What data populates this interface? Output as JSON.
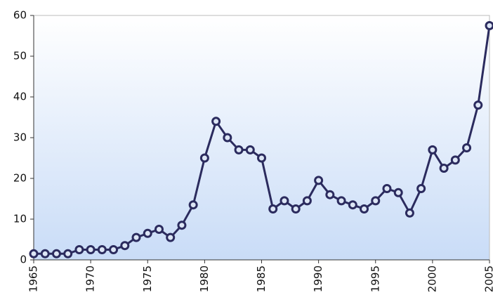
{
  "chart_data": {
    "type": "line",
    "x": [
      1965,
      1966,
      1967,
      1968,
      1969,
      1970,
      1971,
      1972,
      1973,
      1974,
      1975,
      1976,
      1977,
      1978,
      1979,
      1980,
      1981,
      1982,
      1983,
      1984,
      1985,
      1986,
      1987,
      1988,
      1989,
      1990,
      1991,
      1992,
      1993,
      1994,
      1995,
      1996,
      1997,
      1998,
      1999,
      2000,
      2001,
      2002,
      2003,
      2004,
      2005
    ],
    "values": [
      1.5,
      1.5,
      1.5,
      1.5,
      2.5,
      2.5,
      2.5,
      2.5,
      3.5,
      5.5,
      6.5,
      7.5,
      5.5,
      8.5,
      13.5,
      25,
      34,
      30,
      27,
      27,
      25,
      12.5,
      14.5,
      12.5,
      14.5,
      19.5,
      16,
      14.5,
      13.5,
      12.5,
      14.5,
      17.5,
      16.5,
      11.5,
      17.5,
      27,
      22.5,
      24.5,
      27.5,
      38,
      57.5
    ],
    "color": "#2b2b5e",
    "xlim": [
      1965,
      2005
    ],
    "xticks": [
      1965,
      1970,
      1975,
      1980,
      1985,
      1990,
      1995,
      2000,
      2005
    ],
    "ylim": [
      0,
      60
    ],
    "yticks": [
      0,
      10,
      20,
      30,
      40,
      50,
      60
    ]
  }
}
